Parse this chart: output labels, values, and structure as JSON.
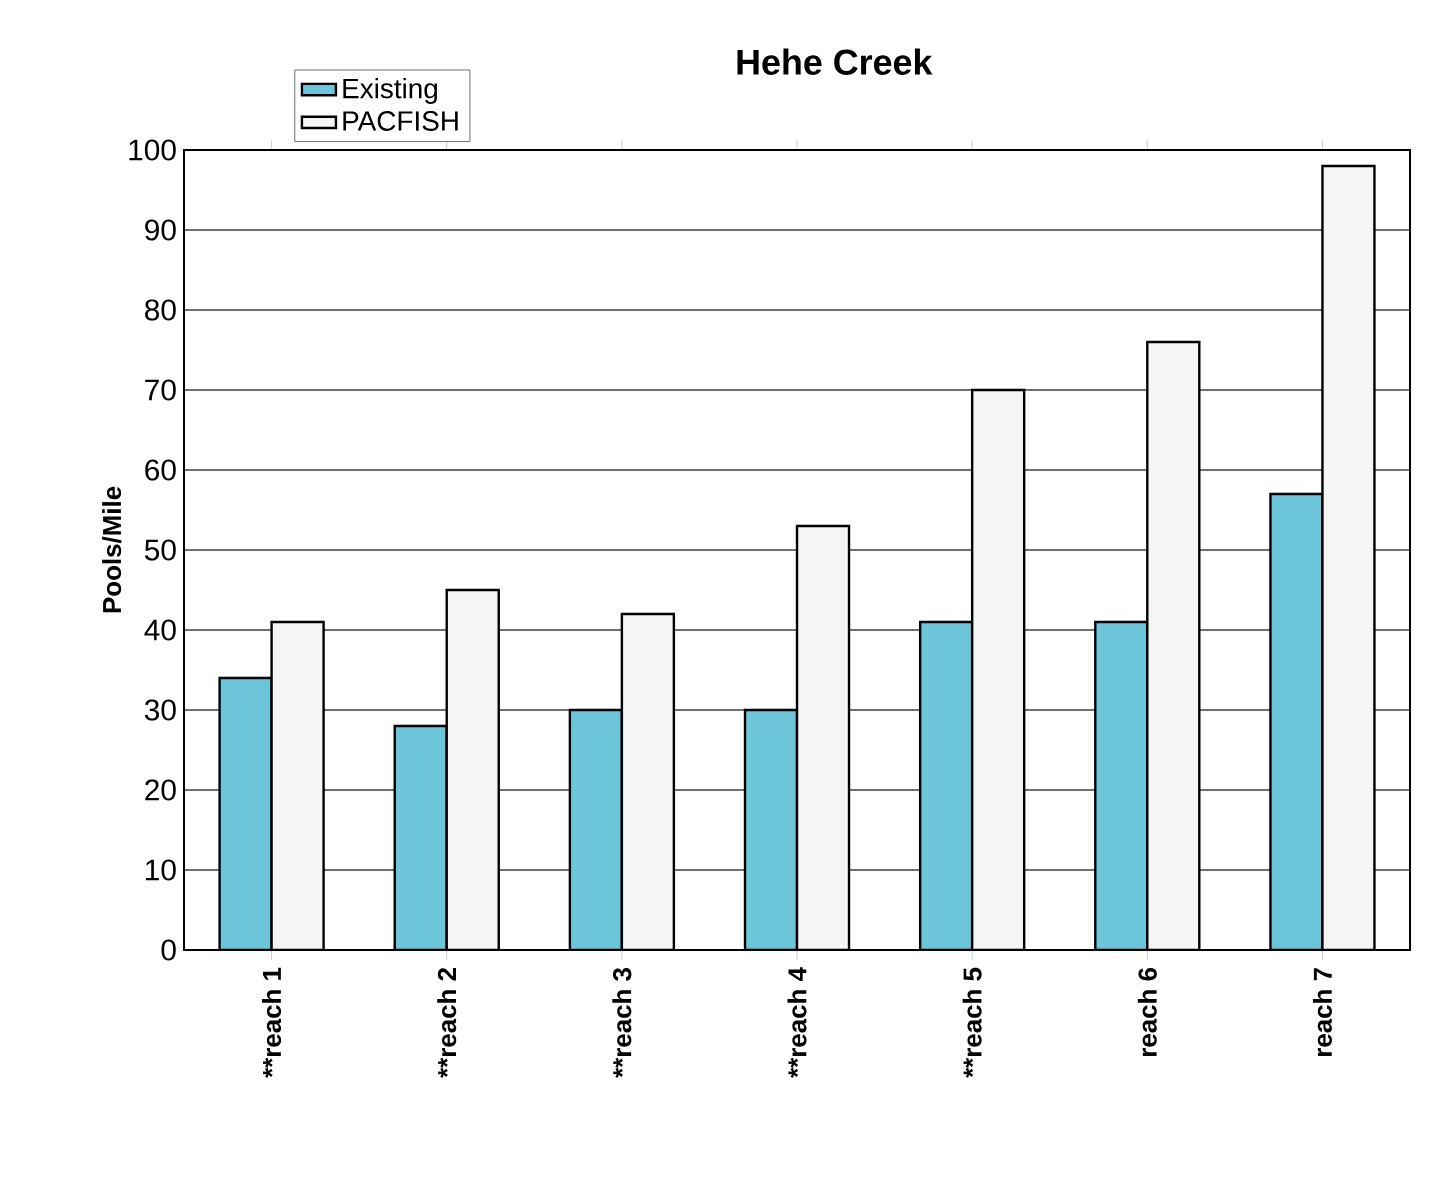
{
  "chart_data": {
    "type": "bar",
    "title": "Hehe Creek",
    "ylabel": "Pools/Mile",
    "categories": [
      "**reach 1",
      "**reach 2",
      "**reach 3",
      "**reach 4",
      "**reach 5",
      "reach 6",
      "reach 7"
    ],
    "series": [
      {
        "name": "Existing",
        "color": "#6cc5d8",
        "values": [
          34,
          28,
          30,
          30,
          41,
          41,
          57
        ]
      },
      {
        "name": "PACFISH",
        "color": "#f5f5f5",
        "values": [
          41,
          45,
          42,
          53,
          70,
          76,
          98
        ]
      }
    ],
    "ylim": [
      0,
      100
    ],
    "yticks": [
      0,
      10,
      20,
      30,
      40,
      50,
      60,
      70,
      80,
      90,
      100
    ],
    "grid": "y",
    "legend": "top left"
  }
}
